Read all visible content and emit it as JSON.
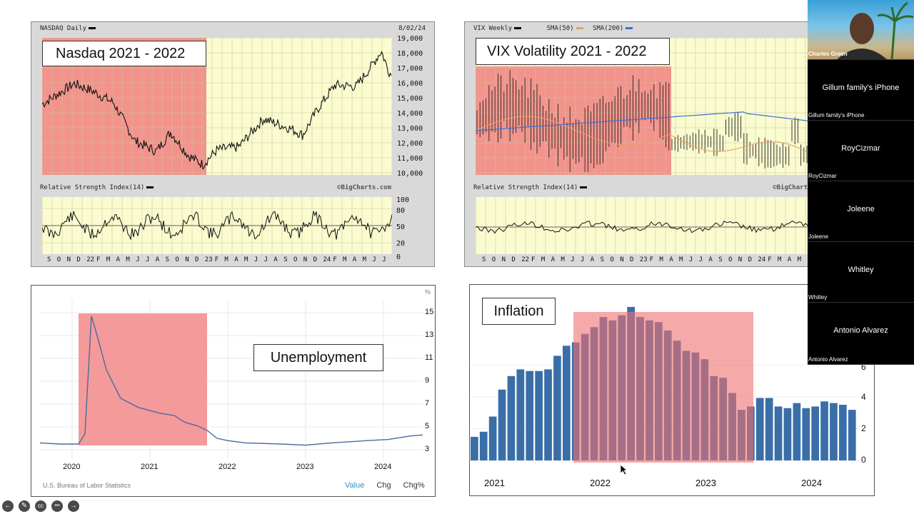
{
  "nasdaq": {
    "header_left": "NASDAQ Daily",
    "header_date": "8/02/24",
    "callout": "Nasdaq 2021 - 2022",
    "y_ticks": [
      "19,000",
      "18,000",
      "17,000",
      "16,000",
      "15,000",
      "14,000",
      "13,000",
      "12,000",
      "11,000",
      "10,000"
    ],
    "rsi_label": "Relative Strength Index(14)",
    "watermark": "©BigCharts.com",
    "rsi_ticks": [
      "100",
      "80",
      "50",
      "20",
      "0"
    ],
    "x_ticks": [
      "S",
      "O",
      "N",
      "D",
      "22",
      "F",
      "M",
      "A",
      "M",
      "J",
      "J",
      "A",
      "S",
      "O",
      "N",
      "D",
      "23",
      "F",
      "M",
      "A",
      "M",
      "J",
      "J",
      "A",
      "S",
      "O",
      "N",
      "D",
      "24",
      "F",
      "M",
      "A",
      "M",
      "J",
      "J"
    ]
  },
  "vix": {
    "header_left": "VIX Weekly",
    "sma50": "SMA(50)",
    "sma200": "SMA(200)",
    "callout": "VIX Volatility 2021 - 2022",
    "rsi_label": "Relative Strength Index(14)",
    "watermark": "©BigChart",
    "x_ticks": [
      "S",
      "O",
      "N",
      "D",
      "22",
      "F",
      "M",
      "A",
      "M",
      "J",
      "J",
      "A",
      "S",
      "O",
      "N",
      "D",
      "23",
      "F",
      "M",
      "A",
      "M",
      "J",
      "J",
      "A",
      "S",
      "O",
      "N",
      "D",
      "24",
      "F",
      "M",
      "A",
      "M"
    ],
    "colors": {
      "sma50": "#e8a060",
      "sma200": "#3a6fd8"
    }
  },
  "unemployment": {
    "unit": "%",
    "callout": "Unemployment",
    "y_ticks": [
      "15",
      "13",
      "11",
      "9",
      "7",
      "5",
      "3"
    ],
    "x_ticks": [
      "2020",
      "2021",
      "2022",
      "2023",
      "2024"
    ],
    "source": "U.S. Bureau of Labor Statistics",
    "tabs": [
      "Value",
      "Chg",
      "Chg%"
    ]
  },
  "inflation": {
    "callout": "Inflation",
    "y_ticks": [
      "6",
      "4",
      "2",
      "0"
    ],
    "x_ticks": [
      "2021",
      "2022",
      "2023",
      "2024"
    ],
    "bars": [
      1.4,
      1.7,
      2.6,
      4.2,
      5.0,
      5.4,
      5.3,
      5.3,
      5.4,
      6.2,
      6.8,
      7.0,
      7.5,
      7.9,
      8.5,
      8.3,
      8.6,
      9.1,
      8.5,
      8.3,
      8.2,
      7.7,
      7.1,
      6.5,
      6.4,
      6.0,
      5.0,
      4.9,
      4.0,
      3.0,
      3.2,
      3.7,
      3.7,
      3.2,
      3.1,
      3.4,
      3.1,
      3.2,
      3.5,
      3.4,
      3.3,
      3.0
    ],
    "highlight_range": [
      10,
      32
    ],
    "color": "#3a6ea8"
  },
  "participants": [
    {
      "name": "Charles Green",
      "center": ""
    },
    {
      "name": "Gillum family's iPhone",
      "center": "Gillum family's iPhone"
    },
    {
      "name": "RoyCizmar",
      "center": "RoyCizmar"
    },
    {
      "name": "Joleene",
      "center": "Joleene"
    },
    {
      "name": "Whitley",
      "center": "Whitley"
    },
    {
      "name": "Antonio Alvarez",
      "center": "Antonio Alvarez"
    }
  ],
  "controls": [
    "back-icon",
    "pen-icon",
    "captions-icon",
    "more-icon",
    "forward-icon"
  ],
  "control_glyphs": [
    "←",
    "✎",
    "cc",
    "•••",
    "→"
  ]
}
